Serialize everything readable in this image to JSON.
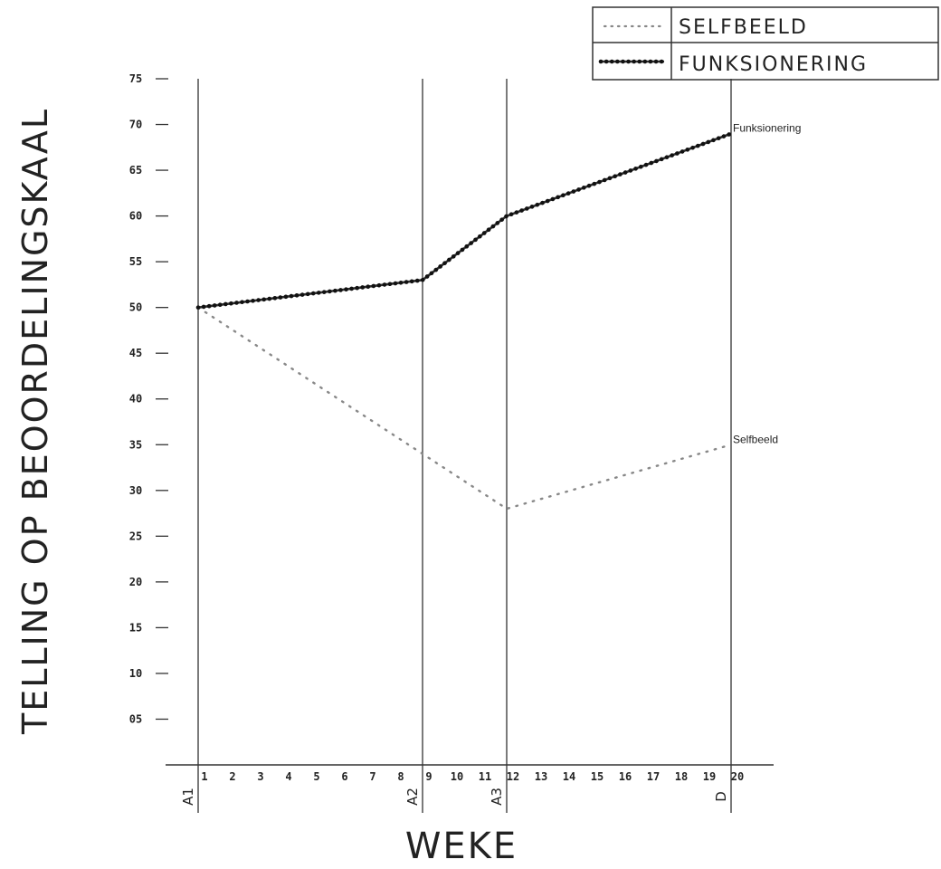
{
  "chart_data": {
    "type": "line",
    "ylabel": "TELLING OP BEOORDELINGSKAAL",
    "xlabel": "WEKE",
    "ylim": [
      0,
      75
    ],
    "xlim": [
      1,
      20
    ],
    "y_ticks": [
      {
        "value": 75,
        "label": "75"
      },
      {
        "value": 70,
        "label": "70"
      },
      {
        "value": 65,
        "label": "65"
      },
      {
        "value": 60,
        "label": "60"
      },
      {
        "value": 55,
        "label": "55"
      },
      {
        "value": 50,
        "label": "50"
      },
      {
        "value": 45,
        "label": "45"
      },
      {
        "value": 40,
        "label": "40"
      },
      {
        "value": 35,
        "label": "35"
      },
      {
        "value": 30,
        "label": "30"
      },
      {
        "value": 25,
        "label": "25"
      },
      {
        "value": 20,
        "label": "20"
      },
      {
        "value": 15,
        "label": "15"
      },
      {
        "value": 10,
        "label": "10"
      },
      {
        "value": 5,
        "label": "05"
      }
    ],
    "x_ticks": [
      {
        "value": 1,
        "label": "1"
      },
      {
        "value": 2,
        "label": "2"
      },
      {
        "value": 3,
        "label": "3"
      },
      {
        "value": 4,
        "label": "4"
      },
      {
        "value": 5,
        "label": "5"
      },
      {
        "value": 6,
        "label": "6"
      },
      {
        "value": 7,
        "label": "7"
      },
      {
        "value": 8,
        "label": "8"
      },
      {
        "value": 9,
        "label": "9"
      },
      {
        "value": 10,
        "label": "10"
      },
      {
        "value": 11,
        "label": "11"
      },
      {
        "value": 12,
        "label": "12"
      },
      {
        "value": 13,
        "label": "13"
      },
      {
        "value": 14,
        "label": "14"
      },
      {
        "value": 15,
        "label": "15"
      },
      {
        "value": 16,
        "label": "16"
      },
      {
        "value": 17,
        "label": "17"
      },
      {
        "value": 18,
        "label": "18"
      },
      {
        "value": 19,
        "label": "19"
      },
      {
        "value": 20,
        "label": "20"
      }
    ],
    "phase_markers": [
      {
        "x": 1,
        "label": "A1"
      },
      {
        "x": 9,
        "label": "A2"
      },
      {
        "x": 12,
        "label": "A3"
      },
      {
        "x": 20,
        "label": "D"
      }
    ],
    "series": [
      {
        "name": "SELFBEELD",
        "annotation": "Selfbeeld",
        "style": "dotted",
        "color": "#888888",
        "points": [
          [
            1,
            50
          ],
          [
            9,
            34
          ],
          [
            12,
            28
          ],
          [
            20,
            35
          ]
        ]
      },
      {
        "name": "FUNKSIONERING",
        "annotation": "Funksionering",
        "style": "beaded",
        "color": "#333333",
        "points": [
          [
            1,
            50
          ],
          [
            9,
            53
          ],
          [
            12,
            60
          ],
          [
            20,
            69
          ]
        ]
      }
    ],
    "legend_position": "top-right",
    "grid": false
  }
}
